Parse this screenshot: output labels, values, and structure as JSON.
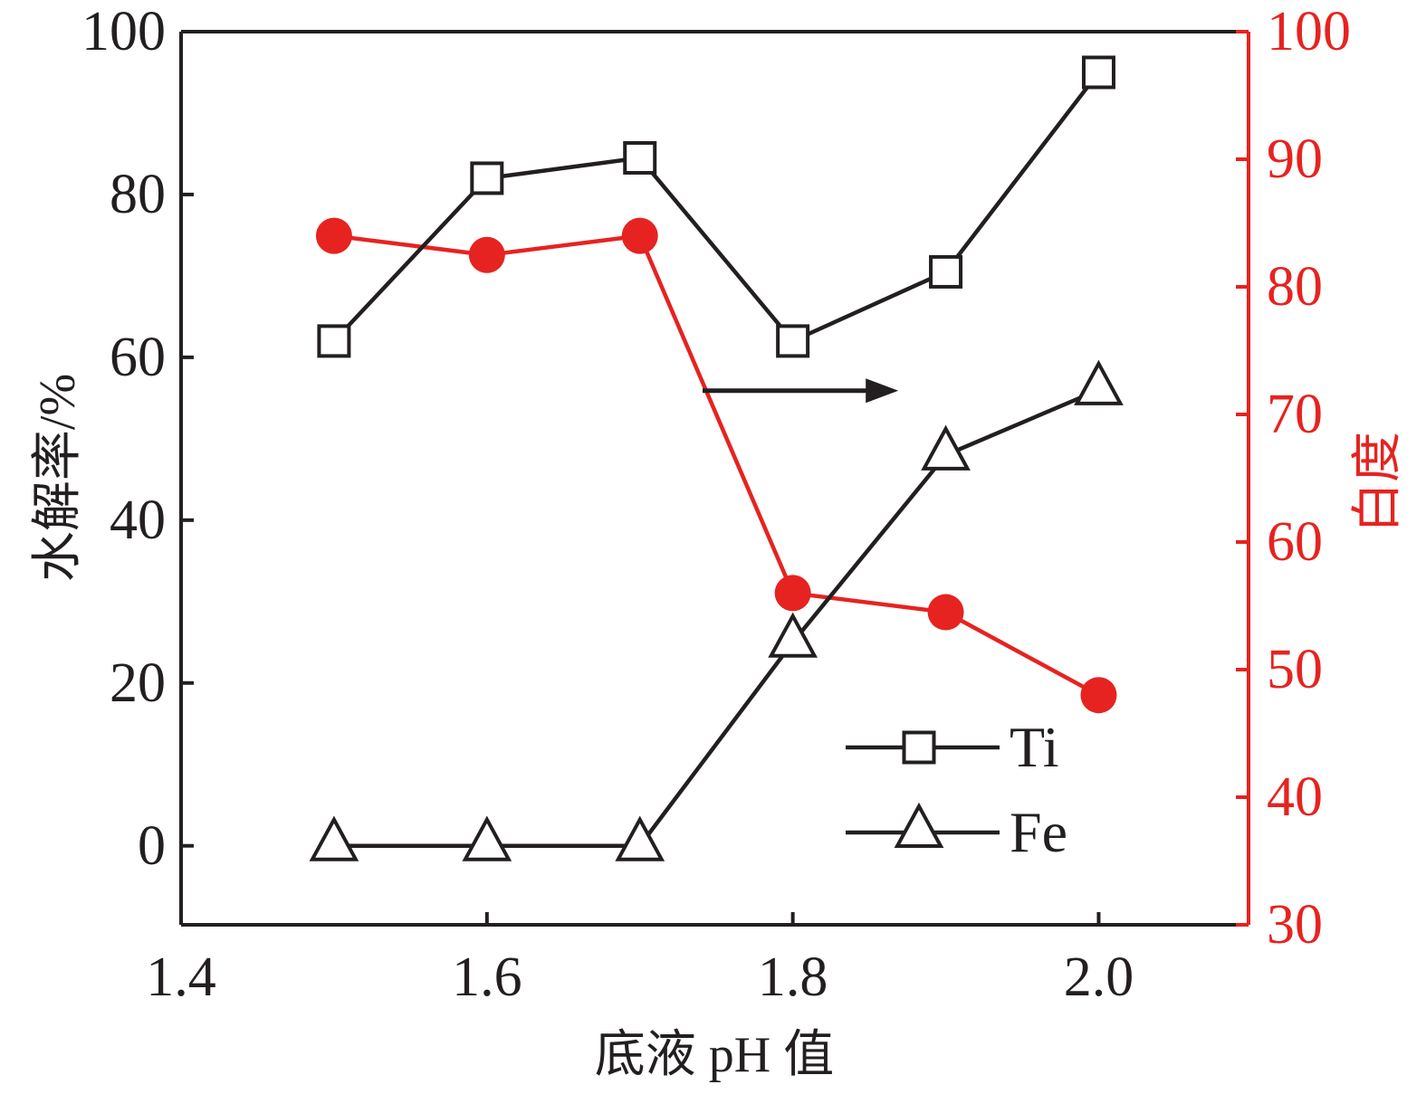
{
  "chart_data": {
    "type": "line",
    "title": "",
    "xlabel": "底液 pH 值",
    "ylabel_left": "水解率/%",
    "ylabel_right": "白度",
    "x": [
      1.5,
      1.6,
      1.7,
      1.8,
      1.9,
      2.0
    ],
    "x_ticks": [
      1.4,
      1.6,
      1.8,
      2.0
    ],
    "x_tick_labels": [
      "1.4",
      "1.6",
      "1.8",
      "2.0"
    ],
    "x_range": [
      1.4,
      2.098
    ],
    "y_left_ticks": [
      0,
      20,
      40,
      60,
      80,
      100
    ],
    "y_left_tick_labels": [
      "0",
      "20",
      "40",
      "60",
      "80",
      "100"
    ],
    "y_left_range": [
      -9.7,
      100
    ],
    "y_right_ticks": [
      30,
      40,
      50,
      60,
      70,
      80,
      90,
      100
    ],
    "y_right_tick_labels": [
      "30",
      "40",
      "50",
      "60",
      "70",
      "80",
      "90",
      "100"
    ],
    "y_right_range": [
      30,
      100
    ],
    "grid": false,
    "series": [
      {
        "name": "Ti",
        "axis": "left",
        "marker": "open-square",
        "color": "#231f20",
        "values": [
          62,
          82,
          84.5,
          62,
          70.5,
          95
        ]
      },
      {
        "name": "Fe",
        "axis": "left",
        "marker": "open-triangle",
        "color": "#231f20",
        "values": [
          0,
          0,
          0,
          25,
          48,
          56
        ]
      },
      {
        "name": "白度",
        "axis": "right",
        "marker": "filled-circle",
        "color": "#e62320",
        "values": [
          84,
          82.5,
          84,
          56,
          54.5,
          48
        ]
      }
    ],
    "legend": {
      "entries": [
        "Ti",
        "Fe"
      ],
      "position": "inside lower right"
    },
    "annotation_arrow": {
      "x_tail": 1.741,
      "x_tip": 1.869,
      "y_left": 55.9,
      "direction": "right",
      "meaning": "red circle series reads on right axis"
    },
    "colors": {
      "black": "#231f20",
      "red": "#e62320",
      "background": "#ffffff"
    }
  }
}
